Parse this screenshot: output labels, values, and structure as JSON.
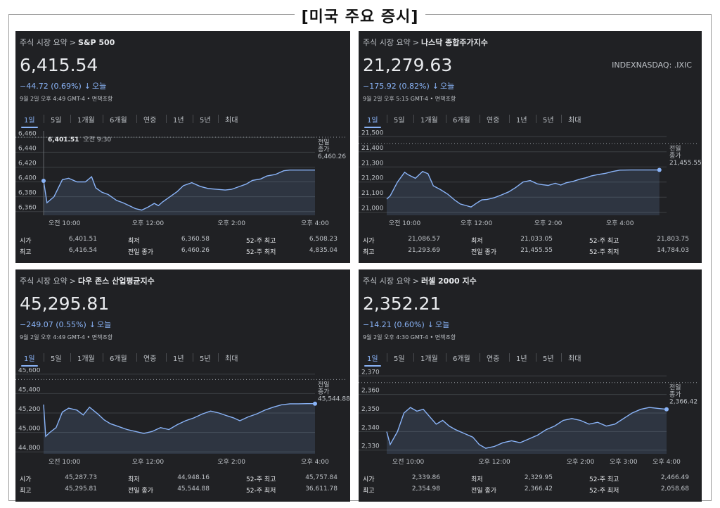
{
  "page": {
    "title": "[미국 주요 증시]"
  },
  "common": {
    "tabs": [
      "1일",
      "5일",
      "1개월",
      "6개월",
      "연중",
      "1년",
      "5년",
      "최대"
    ],
    "prev_close_label": [
      "전일",
      "종가"
    ],
    "stat_labels": {
      "open": "시가",
      "high": "최고",
      "low": "최저",
      "prev_close": "전일 종가",
      "high52": "52-주 최고",
      "low52": "52-주 최저"
    },
    "colors": {
      "panel_bg": "#202124",
      "accent": "#8ab4f8",
      "text": "#e8eaed",
      "muted": "#bdc1c6",
      "grid": "#3c4043"
    }
  },
  "panels": [
    {
      "breadcrumb_prefix": "주식 시장 요약",
      "breadcrumb_sep": ">",
      "name": "S&P 500",
      "price": "6,415.54",
      "change": "−44.72 (0.69%)",
      "change_arrow": "↓",
      "change_period": "오늘",
      "timestamp": "9월 2일 오후 4:49 GMT-4 • 면책조항",
      "symbol": "",
      "active_tab": 0,
      "hover": {
        "value": "6,401.51",
        "time": "오전 9:30"
      },
      "prev_close_value": "6,460.26",
      "stats": {
        "open": "6,401.51",
        "high": "6,416.54",
        "low": "6,360.58",
        "prev_close": "6,460.26",
        "high52": "6,508.23",
        "low52": "4,835.04"
      },
      "chart_data": {
        "type": "area",
        "y_ticks": [
          "6,460",
          "6,440",
          "6,420",
          "6,400",
          "6,380",
          "6,360"
        ],
        "ylim": [
          6355,
          6465
        ],
        "x_ticks": [
          {
            "label": "오전 10:00",
            "t": 0.5
          },
          {
            "label": "오후 12:00",
            "t": 2.5
          },
          {
            "label": "오후 2:00",
            "t": 4.5
          },
          {
            "label": "오후 4:00",
            "t": 6.5
          }
        ],
        "x_range": [
          0,
          6.5
        ],
        "prev_close": 6460.26,
        "x": [
          0,
          0.08,
          0.25,
          0.45,
          0.6,
          0.8,
          1.0,
          1.15,
          1.25,
          1.4,
          1.55,
          1.75,
          1.9,
          2.05,
          2.2,
          2.35,
          2.5,
          2.65,
          2.75,
          2.85,
          3.0,
          3.2,
          3.35,
          3.55,
          3.75,
          3.95,
          4.15,
          4.35,
          4.5,
          4.7,
          4.85,
          5.0,
          5.2,
          5.35,
          5.55,
          5.75,
          5.9,
          6.0,
          6.15,
          6.35,
          6.5
        ],
        "y": [
          6401.5,
          6372,
          6380,
          6403,
          6405,
          6400,
          6400,
          6407,
          6392,
          6386,
          6383,
          6375,
          6372,
          6368,
          6364,
          6362,
          6366,
          6371,
          6368,
          6373,
          6379,
          6387,
          6395,
          6399,
          6394,
          6391,
          6390,
          6389,
          6390,
          6394,
          6397,
          6402,
          6404,
          6408,
          6410,
          6415,
          6416,
          6416,
          6416,
          6416,
          6416
        ]
      }
    },
    {
      "breadcrumb_prefix": "주식 시장 요약",
      "breadcrumb_sep": ">",
      "name": "나스닥 종합주가지수",
      "price": "21,279.63",
      "change": "−175.92 (0.82%)",
      "change_arrow": "↓",
      "change_period": "오늘",
      "timestamp": "9월 2일 오후 5:15 GMT-4 • 면책조항",
      "symbol": "INDEXNASDAQ: .IXIC",
      "active_tab": 0,
      "hover": null,
      "prev_close_value": "21,455.55",
      "stats": {
        "open": "21,086.57",
        "high": "21,293.69",
        "low": "21,033.05",
        "prev_close": "21,455.55",
        "high52": "21,803.75",
        "low52": "14,784.03"
      },
      "chart_data": {
        "type": "area",
        "y_ticks": [
          "21,500",
          "21,400",
          "21,300",
          "21,200",
          "21,100",
          "21,000"
        ],
        "ylim": [
          20980,
          21520
        ],
        "x_ticks": [
          {
            "label": "오전 10:00",
            "t": 0.5
          },
          {
            "label": "오후 12:00",
            "t": 2.5
          },
          {
            "label": "오후 2:00",
            "t": 4.5
          },
          {
            "label": "오후 4:00",
            "t": 6.5
          }
        ],
        "x_range": [
          0,
          7.8
        ],
        "prev_close": 21455.55,
        "x": [
          0,
          0.1,
          0.3,
          0.5,
          0.6,
          0.8,
          1.0,
          1.15,
          1.3,
          1.5,
          1.7,
          1.9,
          2.05,
          2.2,
          2.35,
          2.5,
          2.65,
          2.8,
          3.0,
          3.2,
          3.4,
          3.6,
          3.8,
          4.0,
          4.2,
          4.35,
          4.5,
          4.7,
          4.85,
          5.0,
          5.2,
          5.4,
          5.55,
          5.7,
          5.9,
          6.1,
          6.3,
          6.5,
          6.8,
          7.2,
          7.6
        ],
        "y": [
          21087,
          21110,
          21200,
          21265,
          21248,
          21225,
          21270,
          21255,
          21175,
          21150,
          21120,
          21080,
          21055,
          21045,
          21035,
          21060,
          21082,
          21085,
          21097,
          21115,
          21135,
          21165,
          21200,
          21210,
          21188,
          21182,
          21178,
          21192,
          21180,
          21195,
          21205,
          21220,
          21228,
          21240,
          21250,
          21258,
          21270,
          21279,
          21280,
          21280,
          21280
        ]
      }
    },
    {
      "breadcrumb_prefix": "주식 시장 요약",
      "breadcrumb_sep": ">",
      "name": "다우 존스 산업평균지수",
      "price": "45,295.81",
      "change": "−249.07 (0.55%)",
      "change_arrow": "↓",
      "change_period": "오늘",
      "timestamp": "9월 2일 오후 4:49 GMT-4 • 면책조항",
      "symbol": "",
      "active_tab": 0,
      "hover": null,
      "prev_close_value": "45,544.88",
      "stats": {
        "open": "45,287.73",
        "high": "45,295.81",
        "low": "44,948.16",
        "prev_close": "45,544.88",
        "high52": "45,757.84",
        "low52": "36,611.78"
      },
      "chart_data": {
        "type": "area",
        "y_ticks": [
          "45,600",
          "45,400",
          "45,200",
          "45,000",
          "44,800"
        ],
        "ylim": [
          44780,
          45620
        ],
        "x_ticks": [
          {
            "label": "오전 10:00",
            "t": 0.5
          },
          {
            "label": "오후 12:00",
            "t": 2.5
          },
          {
            "label": "오후 2:00",
            "t": 4.5
          },
          {
            "label": "오후 4:00",
            "t": 6.5
          }
        ],
        "x_range": [
          0,
          6.5
        ],
        "prev_close": 45544.88,
        "x": [
          0,
          0.05,
          0.15,
          0.3,
          0.45,
          0.6,
          0.8,
          0.95,
          1.1,
          1.3,
          1.45,
          1.6,
          1.8,
          2.0,
          2.2,
          2.4,
          2.6,
          2.8,
          3.0,
          3.2,
          3.4,
          3.6,
          3.8,
          4.0,
          4.2,
          4.4,
          4.55,
          4.7,
          4.9,
          5.1,
          5.3,
          5.5,
          5.7,
          5.9,
          6.1,
          6.3,
          6.5
        ],
        "y": [
          45287,
          44960,
          45000,
          45050,
          45210,
          45250,
          45230,
          45180,
          45260,
          45190,
          45130,
          45090,
          45060,
          45030,
          45010,
          44990,
          45010,
          45050,
          45030,
          45080,
          45120,
          45150,
          45190,
          45220,
          45200,
          45170,
          45150,
          45120,
          45160,
          45190,
          45230,
          45260,
          45285,
          45295,
          45295,
          45296,
          45296
        ]
      }
    },
    {
      "breadcrumb_prefix": "주식 시장 요약",
      "breadcrumb_sep": ">",
      "name": "러셀 2000 지수",
      "price": "2,352.21",
      "change": "−14.21 (0.60%)",
      "change_arrow": "↓",
      "change_period": "오늘",
      "timestamp": "9월 2일 오후 4:30 GMT-4 • 면책조항",
      "symbol": "",
      "active_tab": 0,
      "hover": null,
      "prev_close_value": "2,366.42",
      "stats": {
        "open": "2,339.86",
        "high": "2,354.98",
        "low": "2,329.95",
        "prev_close": "2,366.42",
        "high52": "2,466.49",
        "low52": "2,058.68"
      },
      "chart_data": {
        "type": "area",
        "y_ticks": [
          "2,370",
          "2,360",
          "2,350",
          "2,340",
          "2,330"
        ],
        "ylim": [
          2328,
          2372
        ],
        "x_ticks": [
          {
            "label": "오전 10:00",
            "t": 0.5
          },
          {
            "label": "오후 12:00",
            "t": 2.5
          },
          {
            "label": "오후 2:00",
            "t": 4.5
          },
          {
            "label": "오후 3:00",
            "t": 5.5
          },
          {
            "label": "오후 4:00",
            "t": 6.5
          }
        ],
        "x_range": [
          0,
          6.5
        ],
        "prev_close": 2366.42,
        "x": [
          0,
          0.08,
          0.25,
          0.4,
          0.55,
          0.7,
          0.85,
          1.0,
          1.15,
          1.3,
          1.45,
          1.6,
          1.8,
          2.0,
          2.15,
          2.3,
          2.5,
          2.7,
          2.9,
          3.1,
          3.3,
          3.5,
          3.7,
          3.9,
          4.1,
          4.3,
          4.5,
          4.7,
          4.9,
          5.1,
          5.3,
          5.5,
          5.7,
          5.9,
          6.1,
          6.3,
          6.5
        ],
        "y": [
          2339.9,
          2333,
          2340,
          2350,
          2353,
          2351,
          2352,
          2348,
          2344,
          2346,
          2343,
          2341,
          2339,
          2337,
          2333,
          2331,
          2332,
          2334,
          2335,
          2334,
          2336,
          2338,
          2341,
          2343,
          2346,
          2347,
          2346,
          2344,
          2345,
          2343,
          2344,
          2347,
          2350,
          2352,
          2353,
          2352.5,
          2352
        ]
      }
    }
  ]
}
